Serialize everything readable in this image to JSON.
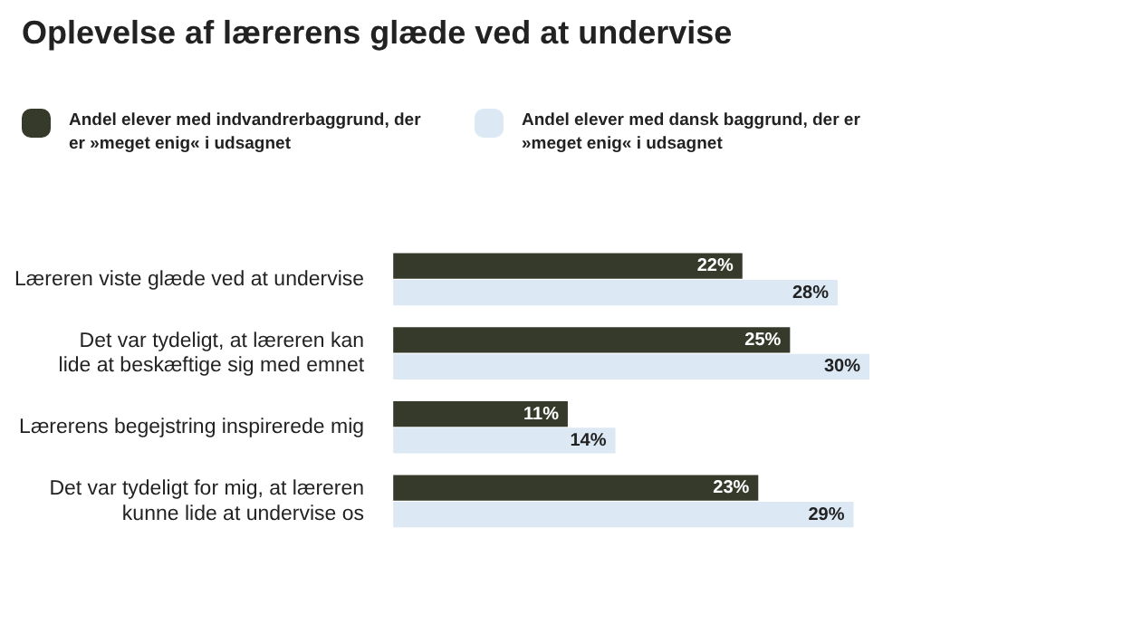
{
  "chart_data": {
    "type": "bar",
    "orientation": "horizontal",
    "title": "Oplevelse af lærerens glæde ved at undervise",
    "categories": [
      "Læreren viste glæde ved at undervise",
      "Det var tydeligt, at læreren kan lide at beskæftige sig med emnet",
      "Lærerens begejstring inspirerede mig",
      "Det var tydeligt for mig, at læreren kunne lide at undervise os"
    ],
    "series": [
      {
        "name": "Andel elever med indvandrerbaggrund, der er »meget enig« i udsagnet",
        "color": "#363a2b",
        "values": [
          22,
          25,
          11,
          23
        ],
        "value_labels": [
          "22%",
          "25%",
          "11%",
          "23%"
        ]
      },
      {
        "name": "Andel elever med dansk baggrund, der er »meget enig« i udsagnet",
        "color": "#dce9f4",
        "values": [
          28,
          30,
          14,
          29
        ],
        "value_labels": [
          "28%",
          "30%",
          "14%",
          "29%"
        ]
      }
    ],
    "legend": "top left"
  }
}
